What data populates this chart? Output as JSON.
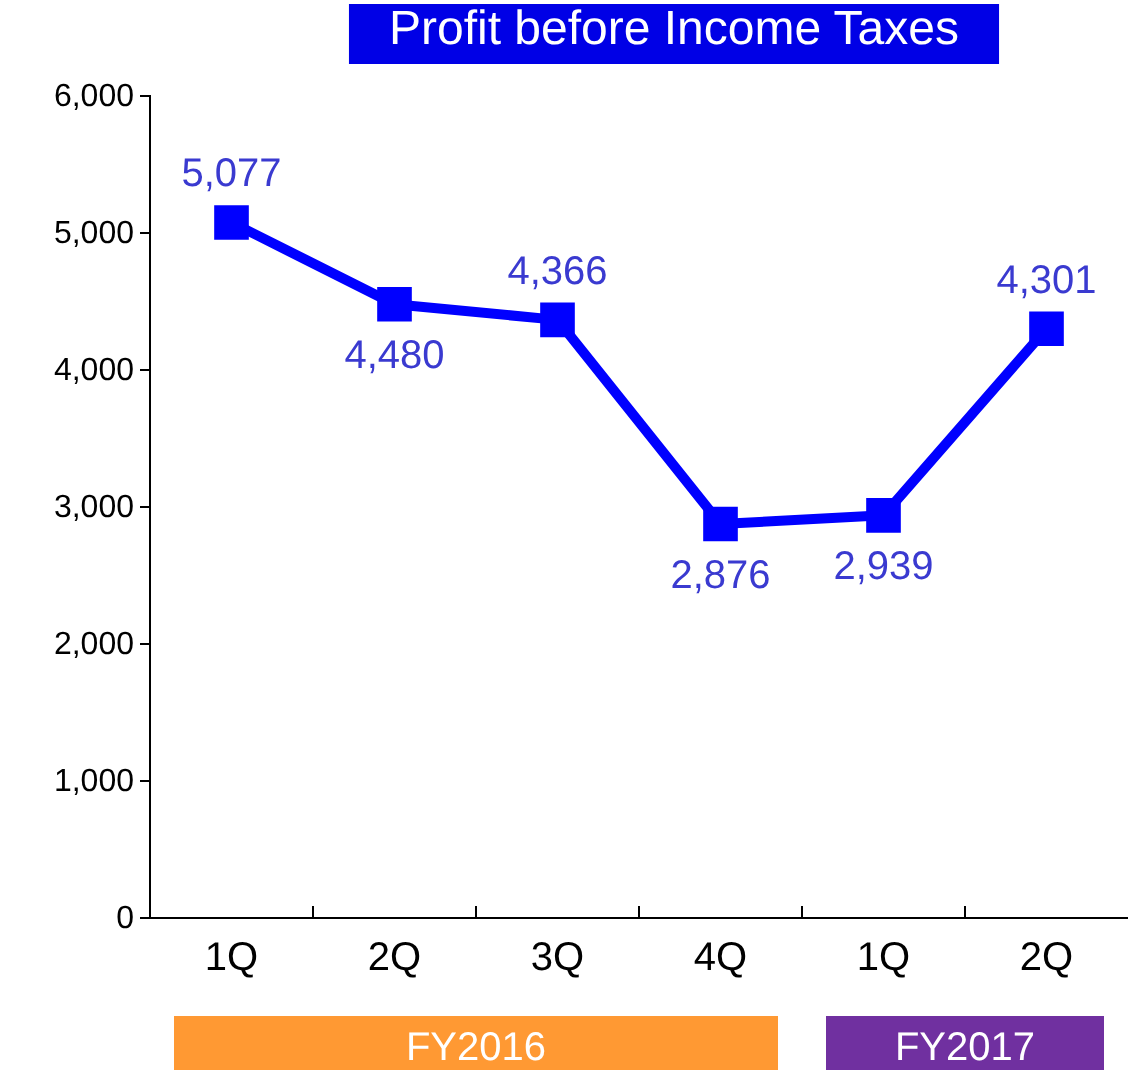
{
  "chart_data": {
    "type": "line",
    "title": "Profit before Income Taxes",
    "categories": [
      "1Q",
      "2Q",
      "3Q",
      "4Q",
      "1Q",
      "2Q"
    ],
    "series": [
      {
        "color": "#0000ff",
        "values": [
          5077,
          4480,
          4366,
          2876,
          2939,
          4301
        ],
        "value_labels": [
          "5,077",
          "4,480",
          "4,366",
          "2,876",
          "2,939",
          "4,301"
        ]
      }
    ],
    "ylim": [
      0,
      6000
    ],
    "yticks": [
      {
        "value": 0,
        "label": "0"
      },
      {
        "value": 1000,
        "label": "1,000"
      },
      {
        "value": 2000,
        "label": "2,000"
      },
      {
        "value": 3000,
        "label": "3,000"
      },
      {
        "value": 4000,
        "label": "4,000"
      },
      {
        "value": 5000,
        "label": "5,000"
      },
      {
        "value": 6000,
        "label": "6,000"
      }
    ],
    "marker": "square",
    "line_style": "solid",
    "grid": false,
    "annotations": [
      "FY2016",
      "FY2017"
    ]
  }
}
